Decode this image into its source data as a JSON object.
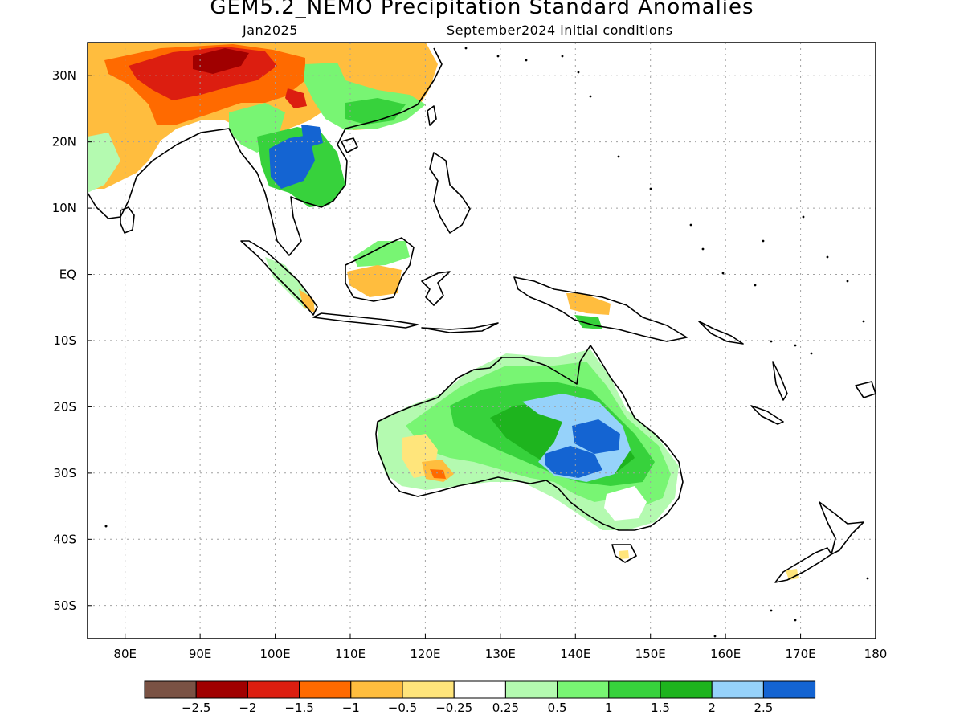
{
  "title": "GEM5.2_NEMO Precipitation Standard Anomalies",
  "subtitle_left": "Jan2025",
  "subtitle_right": "September2024 initial conditions",
  "map": {
    "lon_range": [
      75,
      180
    ],
    "lat_range": [
      -55,
      35
    ],
    "lon_ticks": [
      {
        "value": 80,
        "label": "80E"
      },
      {
        "value": 90,
        "label": "90E"
      },
      {
        "value": 100,
        "label": "100E"
      },
      {
        "value": 110,
        "label": "110E"
      },
      {
        "value": 120,
        "label": "120E"
      },
      {
        "value": 130,
        "label": "130E"
      },
      {
        "value": 140,
        "label": "140E"
      },
      {
        "value": 150,
        "label": "150E"
      },
      {
        "value": 160,
        "label": "160E"
      },
      {
        "value": 170,
        "label": "170E"
      },
      {
        "value": 180,
        "label": "180"
      }
    ],
    "lat_ticks": [
      {
        "value": 30,
        "label": "30N"
      },
      {
        "value": 20,
        "label": "20N"
      },
      {
        "value": 10,
        "label": "10N"
      },
      {
        "value": 0,
        "label": "EQ"
      },
      {
        "value": -10,
        "label": "10S"
      },
      {
        "value": -20,
        "label": "20S"
      },
      {
        "value": -30,
        "label": "30S"
      },
      {
        "value": -40,
        "label": "40S"
      },
      {
        "value": -50,
        "label": "50S"
      }
    ],
    "grid": true
  },
  "colorbar": {
    "colors": [
      "#7a5244",
      "#a00000",
      "#dc1e10",
      "#ff6a00",
      "#ffbd3e",
      "#ffe57b",
      "#ffffff",
      "#b4fab0",
      "#78f573",
      "#37d23c",
      "#1eb41e",
      "#96d2fa",
      "#1464d2"
    ],
    "labels": [
      "-2.5",
      "-2",
      "-1.5",
      "-1",
      "-0.5",
      "-0.25",
      "0.25",
      "0.5",
      "1",
      "1.5",
      "2",
      "2.5"
    ]
  },
  "colors": {
    "dark_brown": "#7a5244",
    "dark_red": "#a00000",
    "red": "#dc1e10",
    "orange": "#ff6a00",
    "light_orange": "#ffbd3e",
    "yellow": "#ffe57b",
    "white": "#ffffff",
    "pale_green": "#b4fab0",
    "light_green": "#78f573",
    "green": "#37d23c",
    "dark_green": "#1eb41e",
    "light_blue": "#96d2fa",
    "blue": "#1464d2"
  }
}
